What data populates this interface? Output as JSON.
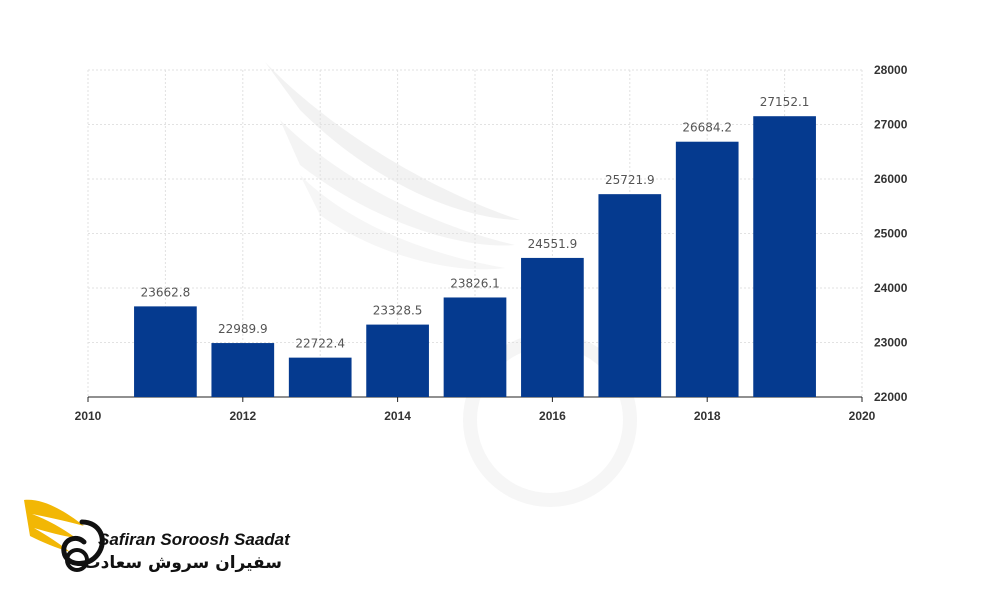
{
  "chart_data": {
    "type": "bar",
    "x": [
      2011,
      2012,
      2013,
      2014,
      2015,
      2016,
      2017,
      2018,
      2019
    ],
    "values": [
      23662.8,
      22989.9,
      22722.4,
      23328.5,
      23826.1,
      24551.9,
      25721.9,
      26684.2,
      27152.1
    ],
    "value_labels": [
      "23662.8",
      "22989.9",
      "22722.4",
      "23328.5",
      "23826.1",
      "24551.9",
      "25721.9",
      "26684.2",
      "27152.1"
    ],
    "xlim": [
      2010,
      2020
    ],
    "ylim": [
      22000,
      28000
    ],
    "x_ticks": [
      "2010",
      "2012",
      "2014",
      "2016",
      "2018",
      "2020"
    ],
    "y_ticks": [
      "22000",
      "23000",
      "24000",
      "25000",
      "26000",
      "27000",
      "28000"
    ],
    "y_axis_side": "right",
    "grid": true,
    "bar_color": "#053a8f",
    "title": "",
    "xlabel": "",
    "ylabel": ""
  },
  "brand": {
    "name_en": "Safiran Soroosh Saadat",
    "name_fa": "سفیران سروش سعادت",
    "accent_color": "#f2b705"
  }
}
